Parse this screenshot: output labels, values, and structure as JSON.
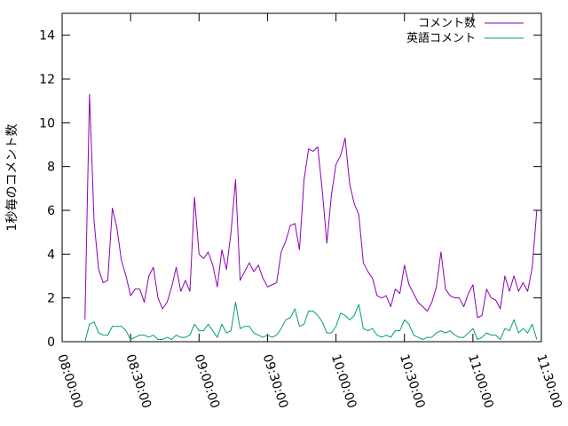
{
  "chart_data": {
    "type": "line",
    "ylabel": "1秒毎のコメント数",
    "xlim": [
      "08:00:00",
      "11:30:00"
    ],
    "ylim": [
      0,
      15
    ],
    "x_ticks": [
      "08:00:00",
      "08:30:00",
      "09:00:00",
      "09:30:00",
      "10:00:00",
      "10:30:00",
      "11:00:00",
      "11:30:00"
    ],
    "y_ticks": [
      "0",
      "2",
      "4",
      "6",
      "8",
      "10",
      "12",
      "14"
    ],
    "x_start": "08:10:00",
    "x_step_minutes": 2,
    "legend_position": "top-right",
    "series": [
      {
        "name": "コメント数",
        "color": "#8b00b4",
        "values": [
          1.0,
          11.3,
          5.5,
          3.3,
          2.7,
          2.8,
          6.1,
          5.2,
          3.7,
          3.0,
          2.1,
          2.4,
          2.4,
          1.8,
          3.0,
          3.4,
          2.0,
          1.5,
          1.8,
          2.5,
          3.4,
          2.3,
          2.8,
          2.3,
          6.6,
          4.0,
          3.8,
          4.1,
          3.5,
          2.5,
          4.2,
          3.3,
          5.0,
          7.4,
          2.8,
          3.2,
          3.6,
          3.2,
          3.5,
          2.9,
          2.5,
          2.6,
          2.7,
          4.1,
          4.6,
          5.3,
          5.4,
          4.2,
          7.4,
          8.8,
          8.7,
          8.9,
          6.9,
          4.5,
          6.7,
          8.1,
          8.5,
          9.3,
          7.2,
          6.3,
          5.8,
          3.6,
          3.2,
          2.9,
          2.1,
          2.0,
          2.1,
          1.6,
          2.4,
          2.2,
          3.5,
          2.6,
          2.2,
          1.8,
          1.6,
          1.4,
          1.8,
          2.5,
          4.1,
          2.4,
          2.1,
          2.0,
          2.0,
          1.6,
          2.2,
          2.6,
          1.1,
          1.2,
          2.4,
          2.0,
          1.9,
          1.5,
          3.0,
          2.3,
          3.0,
          2.3,
          2.7,
          2.3,
          3.4,
          6.0
        ]
      },
      {
        "name": "英語コメント",
        "color": "#009e73",
        "values": [
          0.0,
          0.8,
          0.9,
          0.4,
          0.3,
          0.3,
          0.7,
          0.7,
          0.7,
          0.5,
          0.1,
          0.2,
          0.3,
          0.3,
          0.2,
          0.3,
          0.1,
          0.1,
          0.2,
          0.1,
          0.3,
          0.2,
          0.2,
          0.3,
          0.8,
          0.5,
          0.5,
          0.8,
          0.5,
          0.2,
          0.8,
          0.4,
          0.5,
          1.8,
          0.6,
          0.7,
          0.7,
          0.4,
          0.3,
          0.2,
          0.3,
          0.2,
          0.3,
          0.6,
          1.0,
          1.1,
          1.5,
          0.7,
          0.8,
          1.4,
          1.4,
          1.2,
          0.9,
          0.4,
          0.4,
          0.7,
          1.3,
          1.2,
          1.0,
          1.2,
          1.7,
          0.6,
          0.5,
          0.6,
          0.3,
          0.2,
          0.3,
          0.2,
          0.5,
          0.5,
          1.0,
          0.8,
          0.3,
          0.2,
          0.1,
          0.2,
          0.2,
          0.4,
          0.5,
          0.4,
          0.5,
          0.3,
          0.2,
          0.2,
          0.4,
          0.6,
          0.1,
          0.2,
          0.4,
          0.3,
          0.3,
          0.1,
          0.6,
          0.5,
          1.0,
          0.4,
          0.6,
          0.4,
          0.8,
          0.1
        ]
      }
    ]
  }
}
